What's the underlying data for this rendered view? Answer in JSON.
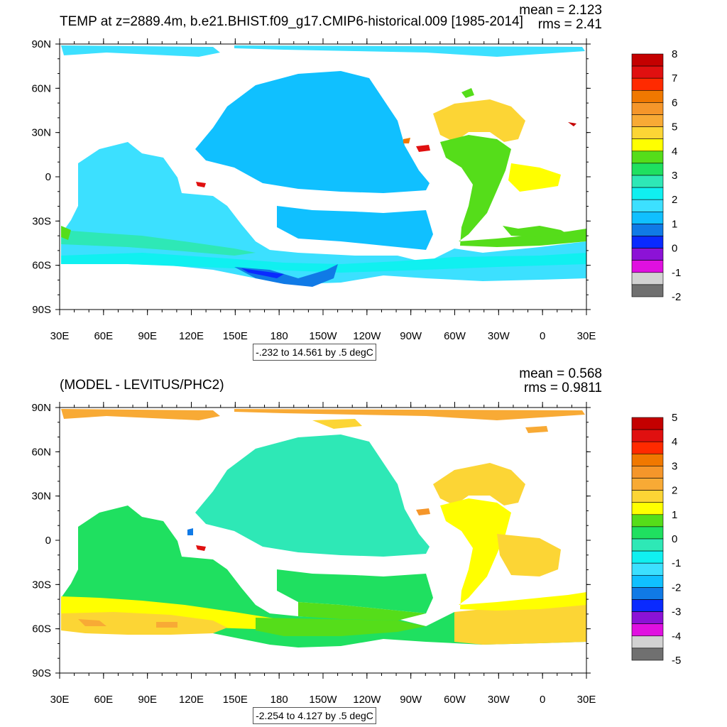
{
  "panels": [
    {
      "title": "TEMP at z=2889.4m, b.e21.BHIST.f09_g17.CMIP6-historical.009 [1985-2014]",
      "mean_text": "mean = 2.123",
      "rms_text": "rms = 2.41",
      "info": "-.232 to 14.561 by .5 degC",
      "lat_labels": [
        "90N",
        "60N",
        "30N",
        "0",
        "30S",
        "60S",
        "90S"
      ],
      "lon_labels": [
        "30E",
        "60E",
        "90E",
        "120E",
        "150E",
        "180",
        "150W",
        "120W",
        "90W",
        "60W",
        "30W",
        "0",
        "30E"
      ],
      "colorbar_labels": [
        "8",
        "7",
        "6",
        "5",
        "4",
        "3",
        "2",
        "1",
        "0",
        "-1",
        "-2"
      ],
      "colorbar_colors": [
        "#c40000",
        "#e01010",
        "#ff2a00",
        "#f07800",
        "#f5962a",
        "#f8aa35",
        "#fcd535",
        "#ffff00",
        "#55dd1a",
        "#1fe060",
        "#2ee8b6",
        "#10f0f0",
        "#3ce0ff",
        "#10c0ff",
        "#107ae6",
        "#0a2aff",
        "#8c12d6",
        "#e010e0",
        "#d2d2d2",
        "#707070"
      ]
    },
    {
      "title": "(MODEL - LEVITUS/PHC2)",
      "mean_text": "mean = 0.568",
      "rms_text": "rms = 0.9811",
      "info": "-2.254 to 4.127 by .5 degC",
      "lat_labels": [
        "90N",
        "60N",
        "30N",
        "0",
        "30S",
        "60S",
        "90S"
      ],
      "lon_labels": [
        "30E",
        "60E",
        "90E",
        "120E",
        "150E",
        "180",
        "150W",
        "120W",
        "90W",
        "60W",
        "30W",
        "0",
        "30E"
      ],
      "colorbar_labels": [
        "5",
        "4",
        "3",
        "2",
        "1",
        "0",
        "-1",
        "-2",
        "-3",
        "-4",
        "-5"
      ],
      "colorbar_colors": [
        "#c40000",
        "#e01010",
        "#ff2a00",
        "#f07800",
        "#f5962a",
        "#f8aa35",
        "#fcd535",
        "#ffff00",
        "#55dd1a",
        "#1fe060",
        "#2ee8b6",
        "#10f0f0",
        "#3ce0ff",
        "#10c0ff",
        "#107ae6",
        "#0a2aff",
        "#8c12d6",
        "#e010e0",
        "#d2d2d2",
        "#707070"
      ]
    }
  ]
}
